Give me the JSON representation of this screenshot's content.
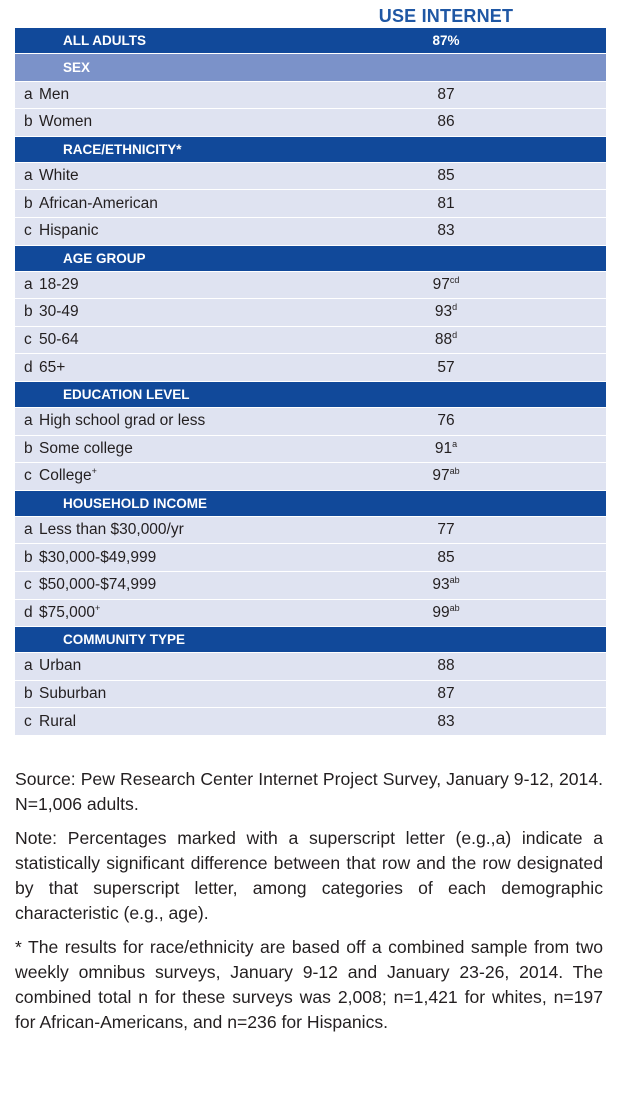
{
  "table": {
    "column_header": "USE INTERNET",
    "rows": [
      {
        "kind": "dark",
        "letter": "",
        "name": "ALL ADULTS",
        "value": "87%",
        "sup": ""
      },
      {
        "kind": "mid",
        "letter": "",
        "name": "SEX",
        "value": "",
        "sup": ""
      },
      {
        "kind": "data",
        "letter": "a",
        "name": "Men",
        "value": "87",
        "sup": ""
      },
      {
        "kind": "data",
        "letter": "b",
        "name": "Women",
        "value": "86",
        "sup": ""
      },
      {
        "kind": "dark",
        "letter": "",
        "name": "RACE/ETHNICITY*",
        "value": "",
        "sup": ""
      },
      {
        "kind": "data",
        "letter": "a",
        "name": "White",
        "value": "85",
        "sup": ""
      },
      {
        "kind": "data",
        "letter": "b",
        "name": "African-American",
        "value": "81",
        "sup": ""
      },
      {
        "kind": "data",
        "letter": "c",
        "name": "Hispanic",
        "value": "83",
        "sup": ""
      },
      {
        "kind": "dark",
        "letter": "",
        "name": "AGE GROUP",
        "value": "",
        "sup": ""
      },
      {
        "kind": "data",
        "letter": "a",
        "name": "18-29",
        "value": "97",
        "sup": "cd"
      },
      {
        "kind": "data",
        "letter": "b",
        "name": "30-49",
        "value": "93",
        "sup": "d"
      },
      {
        "kind": "data",
        "letter": "c",
        "name": "50-64",
        "value": "88",
        "sup": "d"
      },
      {
        "kind": "data",
        "letter": "d",
        "name": "65+",
        "value": "57",
        "sup": ""
      },
      {
        "kind": "dark",
        "letter": "",
        "name": "EDUCATION LEVEL",
        "value": "",
        "sup": ""
      },
      {
        "kind": "data",
        "letter": "a",
        "name": "High school grad or less",
        "value": "76",
        "sup": ""
      },
      {
        "kind": "data",
        "letter": "b",
        "name": "Some college",
        "value": "91",
        "sup": "a"
      },
      {
        "kind": "data",
        "letter": "c",
        "name": "College",
        "name_sup": "+",
        "value": "97",
        "sup": "ab"
      },
      {
        "kind": "dark",
        "letter": "",
        "name": "HOUSEHOLD INCOME",
        "value": "",
        "sup": ""
      },
      {
        "kind": "data",
        "letter": "a",
        "name": "Less than $30,000/yr",
        "value": "77",
        "sup": ""
      },
      {
        "kind": "data",
        "letter": "b",
        "name": "$30,000-$49,999",
        "value": "85",
        "sup": ""
      },
      {
        "kind": "data",
        "letter": "c",
        "name": "$50,000-$74,999",
        "value": "93",
        "sup": "ab"
      },
      {
        "kind": "data",
        "letter": "d",
        "name": "$75,000",
        "name_sup": "+",
        "value": "99",
        "sup": "ab"
      },
      {
        "kind": "dark",
        "letter": "",
        "name": "COMMUNITY TYPE",
        "value": "",
        "sup": ""
      },
      {
        "kind": "data",
        "letter": "a",
        "name": "Urban",
        "value": "88",
        "sup": ""
      },
      {
        "kind": "data",
        "letter": "b",
        "name": "Suburban",
        "value": "87",
        "sup": ""
      },
      {
        "kind": "data",
        "letter": "c",
        "name": "Rural",
        "value": "83",
        "sup": ""
      }
    ]
  },
  "notes": {
    "source": "Source: Pew Research Center Internet Project Survey, January 9-12, 2014. N=1,006 adults.",
    "note": "Note: Percentages marked with a superscript letter (e.g.,a) indicate a statistically significant difference between that row and the row designated by that superscript letter, among categories of each demographic characteristic (e.g., age).",
    "footnote": "* The results for race/ethnicity are based off a combined sample from two weekly omnibus surveys, January 9-12 and January 23-26, 2014. The combined total n for these surveys was 2,008; n=1,421 for whites, n=197 for African-Americans, and n=236 for Hispanics."
  },
  "colors": {
    "header_text": "#1f57a4",
    "dark_band": "#11499a",
    "mid_band": "#7b92c9",
    "row_fill": "#dfe3f1"
  }
}
